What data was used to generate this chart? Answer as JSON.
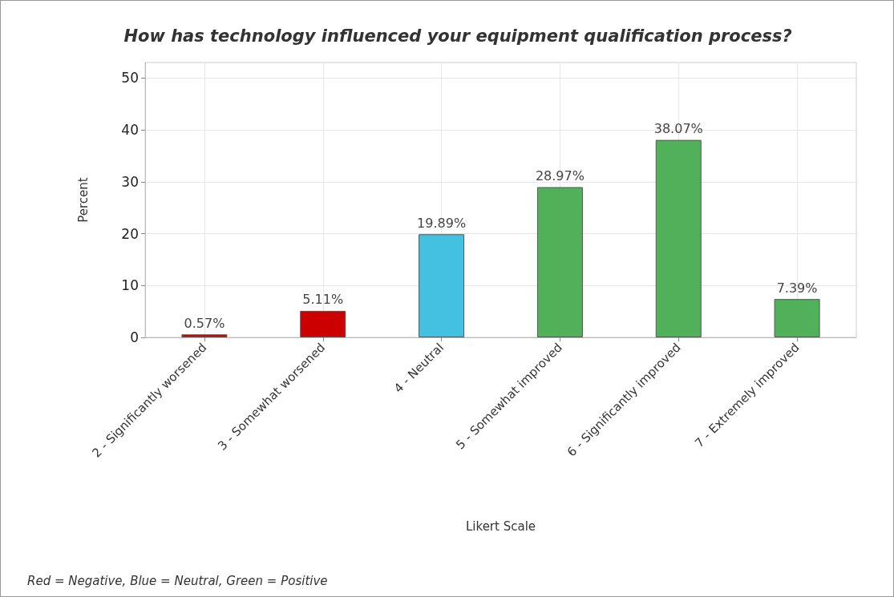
{
  "chart_data": {
    "type": "bar",
    "title": "How has technology influenced your equipment qualification process?",
    "xlabel": "Likert Scale",
    "ylabel": "Percent",
    "categories": [
      "2 - Significantly worsened",
      "3 - Somewhat worsened",
      "4 - Neutral",
      "5 - Somewhat improved",
      "6 - Significantly improved",
      "7 - Extremely improved"
    ],
    "values": [
      0.57,
      5.11,
      19.89,
      28.97,
      38.07,
      7.39
    ],
    "colors": [
      "#cc0000",
      "#cc0000",
      "#44c1e0",
      "#51b05a",
      "#51b05a",
      "#51b05a"
    ],
    "value_labels": [
      "0.57%",
      "5.11%",
      "19.89%",
      "28.97%",
      "38.07%",
      "7.39%"
    ],
    "ylim": [
      0,
      53
    ],
    "yticks": [
      0,
      10,
      20,
      30,
      40,
      50
    ],
    "grid": true,
    "annotations": [
      "Red = Negative, Blue = Neutral, Green = Positive"
    ]
  }
}
